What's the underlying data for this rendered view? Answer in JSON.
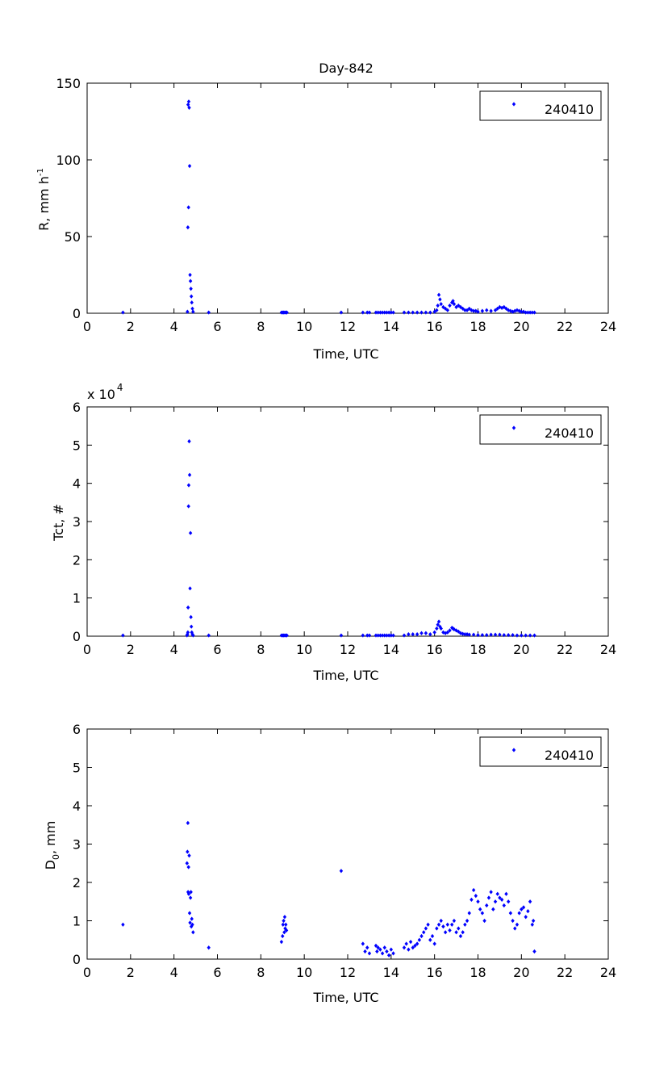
{
  "figure": {
    "title": "Day-842",
    "background": "#ffffff",
    "marker_color": "#0000ff"
  },
  "chart_data": [
    {
      "type": "scatter",
      "title": "Day-842",
      "xlabel": "Time, UTC",
      "ylabel": "R, mm h",
      "ylabel_superscript": "-1",
      "xlim": [
        0,
        24
      ],
      "ylim": [
        0,
        150
      ],
      "xticks": [
        0,
        2,
        4,
        6,
        8,
        10,
        12,
        14,
        16,
        18,
        20,
        22,
        24
      ],
      "yticks": [
        0,
        50,
        100,
        150
      ],
      "legend": {
        "entries": [
          "240410"
        ],
        "position": "top-right"
      },
      "series": [
        {
          "name": "240410",
          "color": "#0000ff",
          "x": [
            1.65,
            4.62,
            4.64,
            4.65,
            4.67,
            4.68,
            4.7,
            4.72,
            4.74,
            4.76,
            4.78,
            4.8,
            4.82,
            4.85,
            4.88,
            5.6,
            8.95,
            9.0,
            9.05,
            9.1,
            9.15,
            9.2,
            11.7,
            12.7,
            12.9,
            13.0,
            13.3,
            13.4,
            13.5,
            13.6,
            13.7,
            13.8,
            13.9,
            14.0,
            14.1,
            14.6,
            14.8,
            15.0,
            15.2,
            15.4,
            15.6,
            15.8,
            16.0,
            16.1,
            16.15,
            16.2,
            16.25,
            16.3,
            16.4,
            16.5,
            16.6,
            16.7,
            16.8,
            16.85,
            16.9,
            17.0,
            17.1,
            17.2,
            17.3,
            17.4,
            17.5,
            17.6,
            17.7,
            17.8,
            17.9,
            18.0,
            18.2,
            18.4,
            18.6,
            18.8,
            18.9,
            19.0,
            19.1,
            19.2,
            19.3,
            19.4,
            19.5,
            19.6,
            19.7,
            19.8,
            19.9,
            20.0,
            20.1,
            20.2,
            20.3,
            20.4,
            20.5,
            20.6
          ],
          "y": [
            0.5,
            1.0,
            56,
            136,
            69,
            138,
            134,
            96,
            25,
            21,
            16,
            11,
            7,
            3,
            1,
            0.5,
            0.5,
            0.5,
            0.5,
            0.5,
            0.5,
            0.5,
            0.5,
            0.5,
            0.5,
            0.5,
            0.5,
            0.5,
            0.5,
            0.5,
            0.5,
            0.5,
            0.5,
            0.5,
            0.5,
            0.5,
            0.5,
            0.5,
            0.5,
            0.5,
            0.5,
            0.5,
            1.0,
            2.0,
            5.0,
            12,
            9,
            6,
            4,
            3,
            2,
            5,
            7,
            8,
            6,
            4,
            5,
            4,
            3,
            2,
            2,
            3,
            2,
            1.5,
            1.5,
            1.0,
            1.5,
            2.0,
            1.5,
            2.0,
            3.0,
            4.0,
            3.5,
            4.0,
            3.0,
            2.0,
            1.5,
            1.0,
            1.5,
            2.0,
            1.5,
            1.0,
            1.0,
            0.5,
            0.5,
            0.5,
            0.5,
            0.5
          ]
        }
      ]
    },
    {
      "type": "scatter",
      "xlabel": "Time, UTC",
      "ylabel": "Tct, #",
      "y_multiplier": "x 10",
      "y_multiplier_exponent": "4",
      "xlim": [
        0,
        24
      ],
      "ylim": [
        0,
        6
      ],
      "xticks": [
        0,
        2,
        4,
        6,
        8,
        10,
        12,
        14,
        16,
        18,
        20,
        22,
        24
      ],
      "yticks": [
        0,
        1,
        2,
        3,
        4,
        5,
        6
      ],
      "legend": {
        "entries": [
          "240410"
        ],
        "position": "top-right"
      },
      "series": [
        {
          "name": "240410",
          "color": "#0000ff",
          "x": [
            1.65,
            4.6,
            4.62,
            4.64,
            4.65,
            4.67,
            4.68,
            4.7,
            4.72,
            4.74,
            4.76,
            4.78,
            4.8,
            4.82,
            4.85,
            4.88,
            5.6,
            8.95,
            9.0,
            9.05,
            9.1,
            9.15,
            9.2,
            11.7,
            12.7,
            12.9,
            13.0,
            13.3,
            13.4,
            13.5,
            13.6,
            13.7,
            13.8,
            13.9,
            14.0,
            14.1,
            14.6,
            14.8,
            15.0,
            15.2,
            15.4,
            15.6,
            15.8,
            16.0,
            16.1,
            16.15,
            16.2,
            16.25,
            16.3,
            16.4,
            16.5,
            16.6,
            16.7,
            16.8,
            16.85,
            16.9,
            17.0,
            17.1,
            17.2,
            17.3,
            17.4,
            17.5,
            17.6,
            17.8,
            18.0,
            18.2,
            18.4,
            18.6,
            18.8,
            19.0,
            19.2,
            19.4,
            19.6,
            19.8,
            20.0,
            20.2,
            20.4,
            20.6
          ],
          "y": [
            0.02,
            0.02,
            0.05,
            0.1,
            0.75,
            3.4,
            3.95,
            5.1,
            4.22,
            1.25,
            2.7,
            0.5,
            0.25,
            0.1,
            0.05,
            0.02,
            0.02,
            0.02,
            0.02,
            0.02,
            0.02,
            0.02,
            0.02,
            0.02,
            0.02,
            0.02,
            0.02,
            0.02,
            0.02,
            0.02,
            0.02,
            0.02,
            0.02,
            0.02,
            0.02,
            0.02,
            0.02,
            0.05,
            0.05,
            0.05,
            0.08,
            0.08,
            0.05,
            0.1,
            0.2,
            0.3,
            0.38,
            0.25,
            0.2,
            0.1,
            0.08,
            0.1,
            0.15,
            0.22,
            0.2,
            0.18,
            0.15,
            0.12,
            0.08,
            0.06,
            0.05,
            0.05,
            0.04,
            0.04,
            0.03,
            0.03,
            0.03,
            0.04,
            0.04,
            0.04,
            0.03,
            0.03,
            0.03,
            0.02,
            0.02,
            0.02,
            0.02,
            0.02
          ]
        }
      ]
    },
    {
      "type": "scatter",
      "xlabel": "Time, UTC",
      "ylabel": "D",
      "ylabel_subscript": "0",
      "ylabel_suffix": ", mm",
      "xlim": [
        0,
        24
      ],
      "ylim": [
        0,
        6
      ],
      "xticks": [
        0,
        2,
        4,
        6,
        8,
        10,
        12,
        14,
        16,
        18,
        20,
        22,
        24
      ],
      "yticks": [
        0,
        1,
        2,
        3,
        4,
        5,
        6
      ],
      "legend": {
        "entries": [
          "240410"
        ],
        "position": "top-right"
      },
      "series": [
        {
          "name": "240410",
          "color": "#0000ff",
          "x": [
            1.65,
            4.6,
            4.62,
            4.64,
            4.65,
            4.67,
            4.68,
            4.7,
            4.72,
            4.74,
            4.76,
            4.78,
            4.8,
            4.82,
            4.85,
            4.88,
            5.6,
            8.95,
            9.0,
            9.02,
            9.05,
            9.08,
            9.1,
            9.12,
            9.15,
            9.18,
            11.7,
            12.7,
            12.8,
            12.9,
            13.0,
            13.3,
            13.35,
            13.4,
            13.5,
            13.6,
            13.7,
            13.8,
            13.9,
            14.0,
            14.1,
            14.6,
            14.7,
            14.8,
            14.9,
            15.0,
            15.1,
            15.2,
            15.3,
            15.4,
            15.5,
            15.6,
            15.7,
            15.8,
            15.9,
            16.0,
            16.1,
            16.2,
            16.3,
            16.4,
            16.5,
            16.6,
            16.7,
            16.8,
            16.9,
            17.0,
            17.1,
            17.2,
            17.3,
            17.4,
            17.5,
            17.6,
            17.7,
            17.8,
            17.9,
            18.0,
            18.1,
            18.2,
            18.3,
            18.4,
            18.5,
            18.6,
            18.7,
            18.8,
            18.9,
            19.0,
            19.1,
            19.2,
            19.3,
            19.4,
            19.5,
            19.6,
            19.7,
            19.8,
            19.9,
            20.0,
            20.1,
            20.2,
            20.3,
            20.4,
            20.5,
            20.55,
            20.6
          ],
          "y": [
            0.9,
            2.5,
            2.8,
            3.55,
            1.75,
            2.4,
            1.7,
            2.7,
            1.2,
            0.95,
            1.6,
            1.75,
            0.85,
            1.05,
            0.9,
            0.7,
            0.3,
            0.45,
            0.6,
            0.9,
            1.0,
            0.7,
            1.1,
            0.8,
            0.9,
            0.75,
            2.3,
            0.4,
            0.2,
            0.3,
            0.15,
            0.35,
            0.2,
            0.3,
            0.25,
            0.15,
            0.3,
            0.2,
            0.1,
            0.25,
            0.15,
            0.3,
            0.4,
            0.25,
            0.45,
            0.3,
            0.35,
            0.4,
            0.5,
            0.6,
            0.7,
            0.8,
            0.9,
            0.5,
            0.6,
            0.4,
            0.8,
            0.9,
            1.0,
            0.85,
            0.7,
            0.9,
            0.75,
            0.9,
            1.0,
            0.7,
            0.8,
            0.6,
            0.7,
            0.9,
            1.0,
            1.2,
            1.55,
            1.8,
            1.65,
            1.5,
            1.3,
            1.2,
            1.0,
            1.4,
            1.6,
            1.75,
            1.3,
            1.5,
            1.7,
            1.6,
            1.55,
            1.4,
            1.7,
            1.5,
            1.2,
            1.0,
            0.8,
            0.9,
            1.2,
            1.3,
            1.35,
            1.1,
            1.25,
            1.5,
            0.9,
            1.0,
            0.2
          ]
        }
      ]
    }
  ]
}
